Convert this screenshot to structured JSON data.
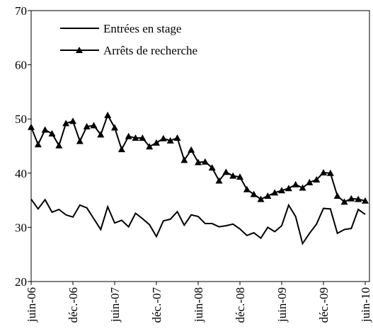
{
  "chart_data": {
    "type": "line",
    "categories": [
      "juin-06",
      null,
      null,
      null,
      null,
      null,
      "déc.-06",
      null,
      null,
      null,
      null,
      null,
      "juin-07",
      null,
      null,
      null,
      null,
      null,
      "déc.-07",
      null,
      null,
      null,
      null,
      null,
      "juin-08",
      null,
      null,
      null,
      null,
      null,
      "déc.-08",
      null,
      null,
      null,
      null,
      null,
      "juin-09",
      null,
      null,
      null,
      null,
      null,
      "déc.-09",
      null,
      null,
      null,
      null,
      null,
      "juin-10"
    ],
    "series": [
      {
        "name": "Entrées en stage",
        "color": "#000000",
        "marker": "none",
        "values": [
          35.2,
          33.4,
          35.1,
          32.8,
          33.3,
          32.3,
          31.9,
          34.1,
          33.6,
          31.6,
          29.6,
          33.8,
          30.8,
          31.3,
          30.1,
          32.6,
          31.6,
          30.5,
          28.3,
          31.2,
          31.5,
          32.9,
          30.4,
          32.3,
          32.0,
          30.7,
          30.7,
          30.1,
          30.3,
          30.6,
          29.7,
          28.5,
          29.0,
          28.0,
          30.0,
          29.2,
          30.3,
          34.1,
          32.0,
          27.0,
          28.9,
          30.6,
          33.5,
          33.4,
          28.9,
          29.6,
          29.8,
          33.3,
          32.4
        ]
      },
      {
        "name": "Arrêts de recherche",
        "color": "#000000",
        "marker": "triangle",
        "values": [
          48.5,
          45.3,
          48.0,
          47.3,
          45.1,
          49.2,
          49.6,
          45.9,
          48.6,
          48.8,
          47.1,
          50.7,
          48.4,
          44.4,
          46.8,
          46.5,
          46.5,
          44.9,
          45.6,
          46.4,
          46.0,
          46.5,
          42.4,
          44.3,
          42.0,
          42.1,
          41.0,
          38.6,
          40.2,
          39.5,
          39.3,
          37.0,
          36.1,
          35.2,
          35.8,
          36.4,
          36.8,
          37.2,
          37.9,
          37.3,
          38.3,
          38.8,
          40.1,
          40.0,
          35.8,
          34.7,
          35.3,
          35.2,
          34.9
        ]
      }
    ],
    "ylim": [
      20,
      70
    ],
    "yticks": [
      20,
      30,
      40,
      50,
      60,
      70
    ],
    "grid": false,
    "legend": "upper-left"
  }
}
